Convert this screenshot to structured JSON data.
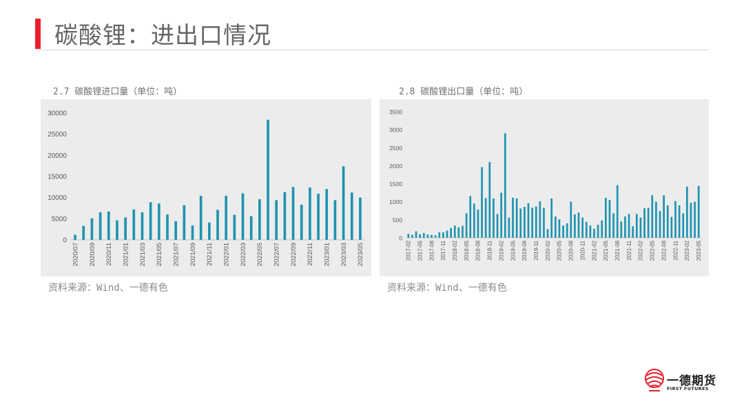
{
  "header": {
    "title": "碳酸锂：进出口情况"
  },
  "colors": {
    "accent": "#e8202a",
    "bar": "#1e93b0",
    "panel": "#ececec"
  },
  "charts": {
    "import": {
      "caption": "2.7 碳酸锂进口量（单位：吨）",
      "source": "资料来源：Wind、一德有色"
    },
    "export": {
      "caption": "2.8 碳酸锂出口量（单位：吨）",
      "source": "资料来源：Wind、一德有色"
    }
  },
  "logo": {
    "name": "一德期货",
    "sub": "FIRST FUTURES",
    "icon": "globe-logo-icon"
  },
  "chart_data": [
    {
      "type": "bar",
      "title": "2.7 碳酸锂进口量（单位：吨）",
      "ylim": [
        0,
        30000
      ],
      "yticks": [
        0,
        5000,
        10000,
        15000,
        20000,
        25000,
        30000
      ],
      "xtick_labels": [
        "2020/07",
        "2020/09",
        "2020/11",
        "2021/01",
        "2021/03",
        "2021/05",
        "2021/07",
        "2021/09",
        "2021/11",
        "2022/01",
        "2022/03",
        "2022/05",
        "2022/07",
        "2022/09",
        "2022/11",
        "2023/01",
        "2023/03",
        "2023/05"
      ],
      "categories": [
        "2020/07",
        "2020/08",
        "2020/09",
        "2020/10",
        "2020/11",
        "2020/12",
        "2021/01",
        "2021/02",
        "2021/03",
        "2021/04",
        "2021/05",
        "2021/06",
        "2021/07",
        "2021/08",
        "2021/09",
        "2021/10",
        "2021/11",
        "2021/12",
        "2022/01",
        "2022/02",
        "2022/03",
        "2022/04",
        "2022/05",
        "2022/06",
        "2022/07",
        "2022/08",
        "2022/09",
        "2022/10",
        "2022/11",
        "2022/12",
        "2023/01",
        "2023/02",
        "2023/03",
        "2023/04",
        "2023/05"
      ],
      "values": [
        1200,
        3300,
        5100,
        6500,
        6700,
        4600,
        5300,
        7200,
        6500,
        8900,
        8600,
        6000,
        4400,
        8200,
        3400,
        10400,
        4100,
        7100,
        10400,
        5900,
        11000,
        5600,
        9600,
        28400,
        9400,
        11300,
        12500,
        8300,
        12400,
        10900,
        12000,
        9400,
        17400,
        11200,
        10000
      ]
    },
    {
      "type": "bar",
      "title": "2.8 碳酸锂出口量（单位：吨）",
      "ylim": [
        0,
        3500
      ],
      "yticks": [
        0,
        500,
        1000,
        1500,
        2000,
        2500,
        3000,
        3500
      ],
      "xtick_labels": [
        "2017-02",
        "2017-05",
        "2017-08",
        "2017-11",
        "2018-02",
        "2018-05",
        "2018-08",
        "2018-11",
        "2019-02",
        "2019-05",
        "2019-08",
        "2019-11",
        "2020-02",
        "2020-05",
        "2020-08",
        "2020-11",
        "2021-02",
        "2021-05",
        "2021-08",
        "2021-11",
        "2022-02",
        "2022-05",
        "2022-08",
        "2022-11",
        "2023-02",
        "2023-05"
      ],
      "categories": [
        "2017-02",
        "2017-03",
        "2017-04",
        "2017-05",
        "2017-06",
        "2017-07",
        "2017-08",
        "2017-09",
        "2017-10",
        "2017-11",
        "2017-12",
        "2018-01",
        "2018-02",
        "2018-03",
        "2018-04",
        "2018-05",
        "2018-06",
        "2018-07",
        "2018-08",
        "2018-09",
        "2018-10",
        "2018-11",
        "2018-12",
        "2019-01",
        "2019-02",
        "2019-03",
        "2019-04",
        "2019-05",
        "2019-06",
        "2019-07",
        "2019-08",
        "2019-09",
        "2019-10",
        "2019-11",
        "2019-12",
        "2020-01",
        "2020-02",
        "2020-03",
        "2020-04",
        "2020-05",
        "2020-06",
        "2020-07",
        "2020-08",
        "2020-09",
        "2020-10",
        "2020-11",
        "2020-12",
        "2021-01",
        "2021-02",
        "2021-03",
        "2021-04",
        "2021-05",
        "2021-06",
        "2021-07",
        "2021-08",
        "2021-09",
        "2021-10",
        "2021-11",
        "2021-12",
        "2022-01",
        "2022-02",
        "2022-03",
        "2022-04",
        "2022-05",
        "2022-06",
        "2022-07",
        "2022-08",
        "2022-09",
        "2022-10",
        "2022-11",
        "2022-12",
        "2023-01",
        "2023-02",
        "2023-03",
        "2023-04",
        "2023-05"
      ],
      "values": [
        110,
        80,
        180,
        100,
        130,
        90,
        80,
        70,
        150,
        150,
        200,
        270,
        340,
        290,
        330,
        680,
        1160,
        950,
        780,
        1960,
        1100,
        2100,
        1090,
        660,
        1250,
        2900,
        560,
        1110,
        1090,
        810,
        860,
        960,
        830,
        870,
        1010,
        830,
        240,
        1090,
        590,
        510,
        340,
        400,
        1000,
        650,
        700,
        560,
        440,
        340,
        250,
        360,
        480,
        1110,
        1050,
        680,
        1460,
        450,
        590,
        660,
        320,
        660,
        560,
        820,
        830,
        1180,
        1000,
        740,
        1180,
        900,
        580,
        1020,
        900,
        680,
        1420,
        970,
        1000,
        1440
      ]
    }
  ]
}
